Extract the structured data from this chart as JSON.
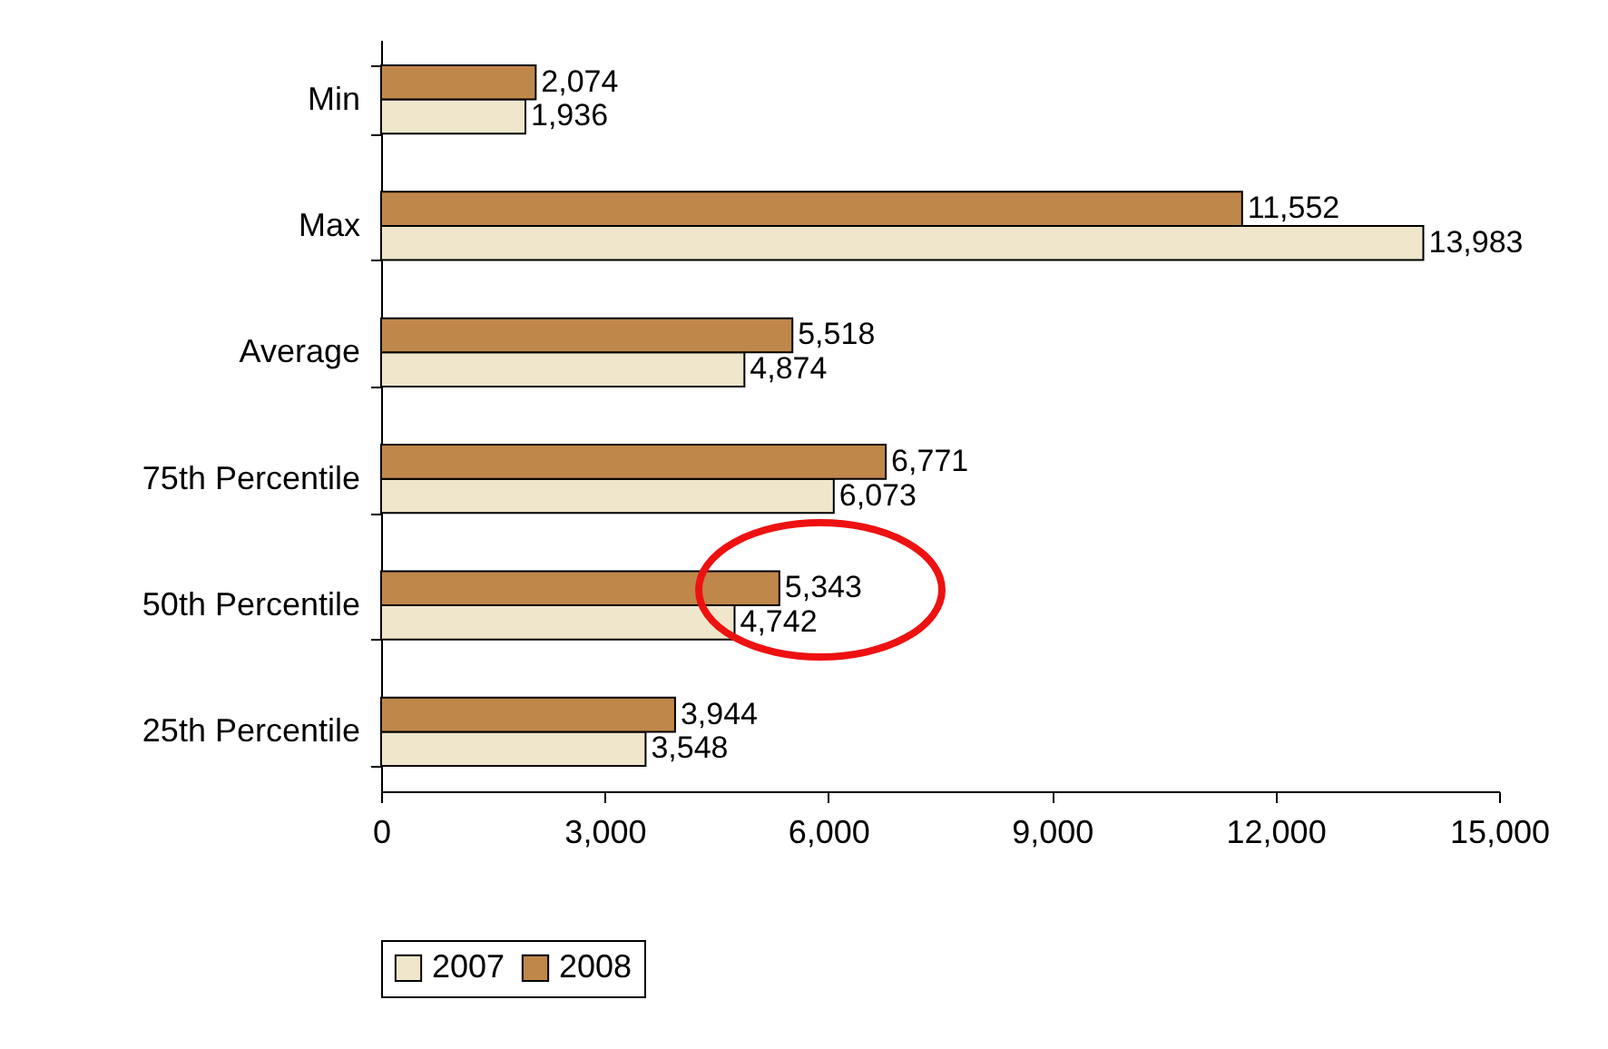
{
  "chart_data": {
    "type": "bar",
    "orientation": "horizontal",
    "categories": [
      "Min",
      "Max",
      "Average",
      "75th Percentile",
      "50th Percentile",
      "25th Percentile"
    ],
    "series": [
      {
        "name": "2007",
        "color": "#efe6cc",
        "values": [
          1936,
          13983,
          4874,
          6073,
          4742,
          3548
        ],
        "value_labels": [
          "1,936",
          "13,983",
          "4,874",
          "6,073",
          "4,742",
          "3,548"
        ]
      },
      {
        "name": "2008",
        "color": "#c0874b",
        "values": [
          2074,
          11552,
          5518,
          6771,
          5343,
          3944
        ],
        "value_labels": [
          "2,074",
          "11,552",
          "5,518",
          "6,771",
          "5,343",
          "3,944"
        ]
      }
    ],
    "xlim": [
      0,
      15000
    ],
    "xticks": [
      0,
      {
        "value": 3000,
        "label": "3,000"
      },
      {
        "value": 6000,
        "label": "6,000"
      },
      {
        "value": 9000,
        "label": "9,000"
      },
      {
        "value": 12000,
        "label": "12,000"
      },
      {
        "value": 15000,
        "label": "15,000"
      }
    ],
    "legend": "bottom"
  }
}
